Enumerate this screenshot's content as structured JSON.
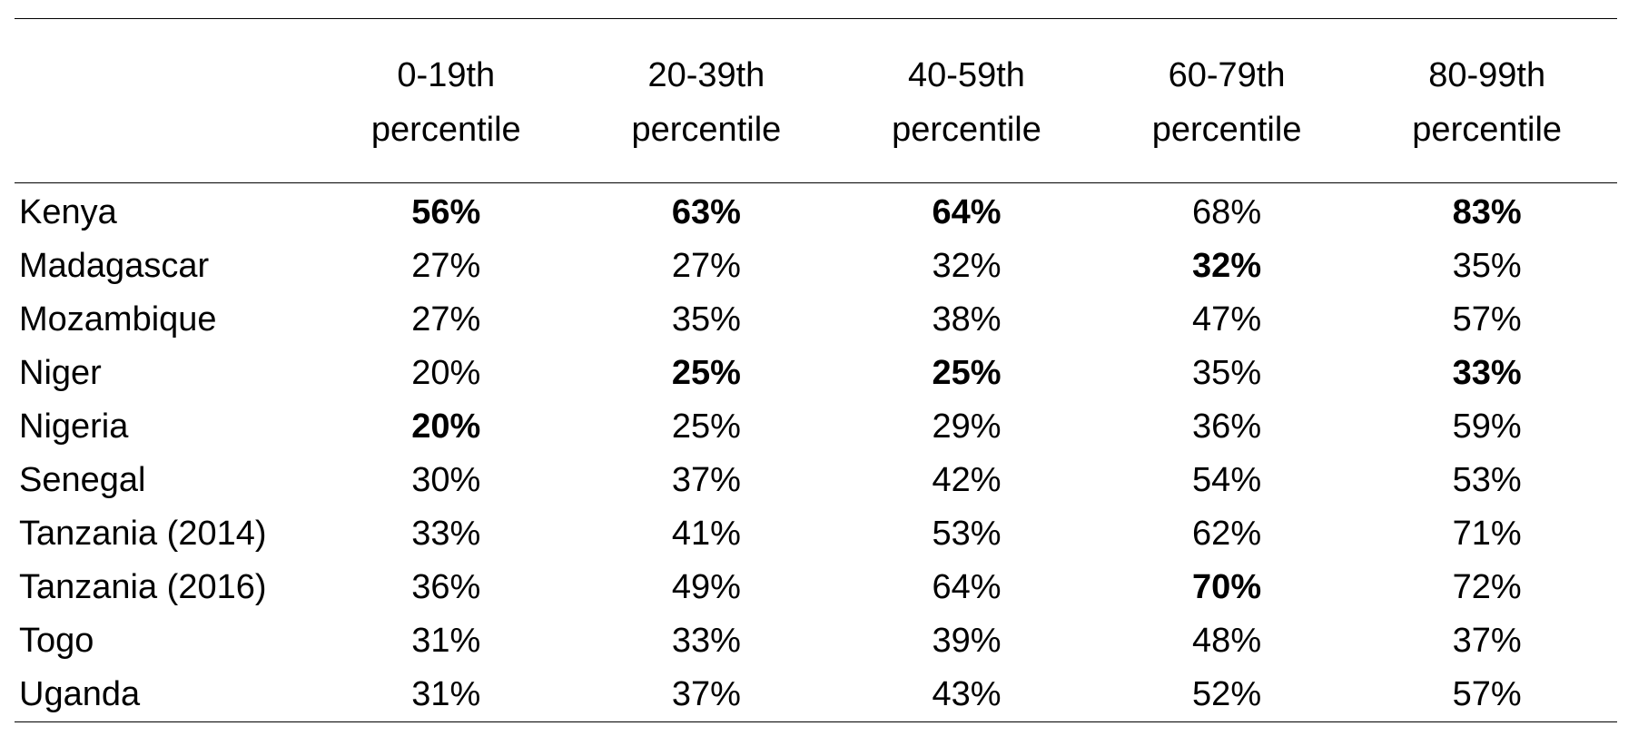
{
  "table": {
    "columns": [
      {
        "line1": "0-19th",
        "line2": "percentile"
      },
      {
        "line1": "20-39th",
        "line2": "percentile"
      },
      {
        "line1": "40-59th",
        "line2": "percentile"
      },
      {
        "line1": "60-79th",
        "line2": "percentile"
      },
      {
        "line1": "80-99th",
        "line2": "percentile"
      }
    ],
    "rows": [
      {
        "country": "Kenya",
        "values": [
          "56%",
          "63%",
          "64%",
          "68%",
          "83%"
        ],
        "bold": [
          true,
          true,
          true,
          false,
          true
        ]
      },
      {
        "country": "Madagascar",
        "values": [
          "27%",
          "27%",
          "32%",
          "32%",
          "35%"
        ],
        "bold": [
          false,
          false,
          false,
          true,
          false
        ]
      },
      {
        "country": "Mozambique",
        "values": [
          "27%",
          "35%",
          "38%",
          "47%",
          "57%"
        ],
        "bold": [
          false,
          false,
          false,
          false,
          false
        ]
      },
      {
        "country": "Niger",
        "values": [
          "20%",
          "25%",
          "25%",
          "35%",
          "33%"
        ],
        "bold": [
          false,
          true,
          true,
          false,
          true
        ]
      },
      {
        "country": "Nigeria",
        "values": [
          "20%",
          "25%",
          "29%",
          "36%",
          "59%"
        ],
        "bold": [
          true,
          false,
          false,
          false,
          false
        ]
      },
      {
        "country": "Senegal",
        "values": [
          "30%",
          "37%",
          "42%",
          "54%",
          "53%"
        ],
        "bold": [
          false,
          false,
          false,
          false,
          false
        ]
      },
      {
        "country": "Tanzania (2014)",
        "values": [
          "33%",
          "41%",
          "53%",
          "62%",
          "71%"
        ],
        "bold": [
          false,
          false,
          false,
          false,
          false
        ]
      },
      {
        "country": "Tanzania (2016)",
        "values": [
          "36%",
          "49%",
          "64%",
          "70%",
          "72%"
        ],
        "bold": [
          false,
          false,
          false,
          true,
          false
        ]
      },
      {
        "country": "Togo",
        "values": [
          "31%",
          "33%",
          "39%",
          "48%",
          "37%"
        ],
        "bold": [
          false,
          false,
          false,
          false,
          false
        ]
      },
      {
        "country": "Uganda",
        "values": [
          "31%",
          "37%",
          "43%",
          "52%",
          "57%"
        ],
        "bold": [
          false,
          false,
          false,
          false,
          false
        ]
      }
    ]
  }
}
